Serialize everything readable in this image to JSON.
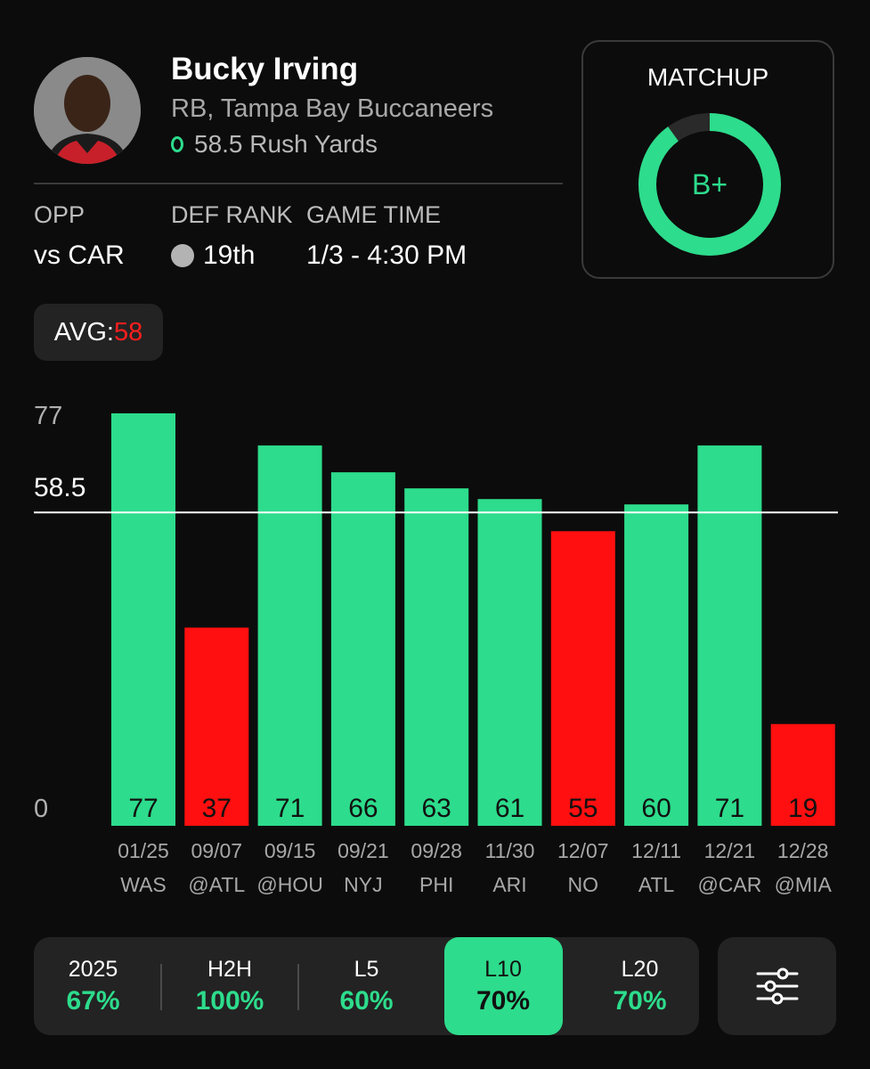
{
  "player": {
    "name": "Bucky Irving",
    "position_team": "RB, Tampa Bay Buccaneers",
    "prop_text": "58.5 Rush Yards"
  },
  "info": {
    "opp_label": "OPP",
    "opp_value": "vs CAR",
    "def_rank_label": "DEF RANK",
    "def_rank_value": "19th",
    "game_time_label": "GAME TIME",
    "game_time_value": "1/3 - 4:30 PM"
  },
  "matchup": {
    "title": "MATCHUP",
    "grade": "B+",
    "ring_fraction": 0.9,
    "ring_color": "#2ddc8c"
  },
  "avg": {
    "label": "AVG: ",
    "value": "58"
  },
  "colors": {
    "over": "#2ddc8c",
    "under": "#ff0f0f",
    "background": "#0c0c0c",
    "card": "#232323"
  },
  "chart_data": {
    "type": "bar",
    "title": "",
    "xlabel": "",
    "ylabel": "",
    "ylim": [
      0,
      77
    ],
    "y_ticks": [
      "77",
      "58.5",
      "0"
    ],
    "line_value": 58.5,
    "categories": [
      {
        "date": "01/25",
        "opp": "WAS"
      },
      {
        "date": "09/07",
        "opp": "@ATL"
      },
      {
        "date": "09/15",
        "opp": "@HOU"
      },
      {
        "date": "09/21",
        "opp": "NYJ"
      },
      {
        "date": "09/28",
        "opp": "PHI"
      },
      {
        "date": "11/30",
        "opp": "ARI"
      },
      {
        "date": "12/07",
        "opp": "NO"
      },
      {
        "date": "12/11",
        "opp": "ATL"
      },
      {
        "date": "12/21",
        "opp": "@CAR"
      },
      {
        "date": "12/28",
        "opp": "@MIA"
      }
    ],
    "values": [
      77,
      37,
      71,
      66,
      63,
      61,
      55,
      60,
      71,
      19
    ]
  },
  "tabs": [
    {
      "label": "2025",
      "pct": "67%",
      "active": false
    },
    {
      "label": "H2H",
      "pct": "100%",
      "active": false
    },
    {
      "label": "L5",
      "pct": "60%",
      "active": false
    },
    {
      "label": "L10",
      "pct": "70%",
      "active": true
    },
    {
      "label": "L20",
      "pct": "70%",
      "active": false
    }
  ],
  "icons": {
    "filter": "sliders-icon",
    "prop": "over-circle-icon",
    "rank": "rank-dot-icon"
  }
}
